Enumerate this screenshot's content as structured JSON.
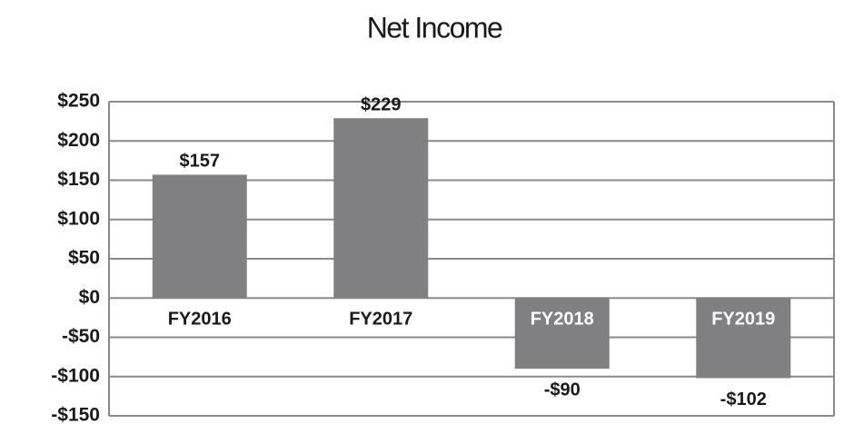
{
  "chart_data": {
    "type": "bar",
    "title": "Net Income",
    "categories": [
      "FY2016",
      "FY2017",
      "FY2018",
      "FY2019"
    ],
    "values": [
      157,
      229,
      -90,
      -102
    ],
    "value_labels": [
      "$157",
      "$229",
      "-$90",
      "-$102"
    ],
    "color": "#808083",
    "ylim": [
      -150,
      250
    ],
    "yticks": [
      {
        "value": -150,
        "label": "-$150"
      },
      {
        "value": -100,
        "label": "-$100"
      },
      {
        "value": -50,
        "label": "-$50"
      },
      {
        "value": 0,
        "label": "$0"
      },
      {
        "value": 50,
        "label": "$50"
      },
      {
        "value": 100,
        "label": "$100"
      },
      {
        "value": 150,
        "label": "$150"
      },
      {
        "value": 200,
        "label": "$200"
      },
      {
        "value": 250,
        "label": "$250"
      }
    ],
    "grid": true
  }
}
